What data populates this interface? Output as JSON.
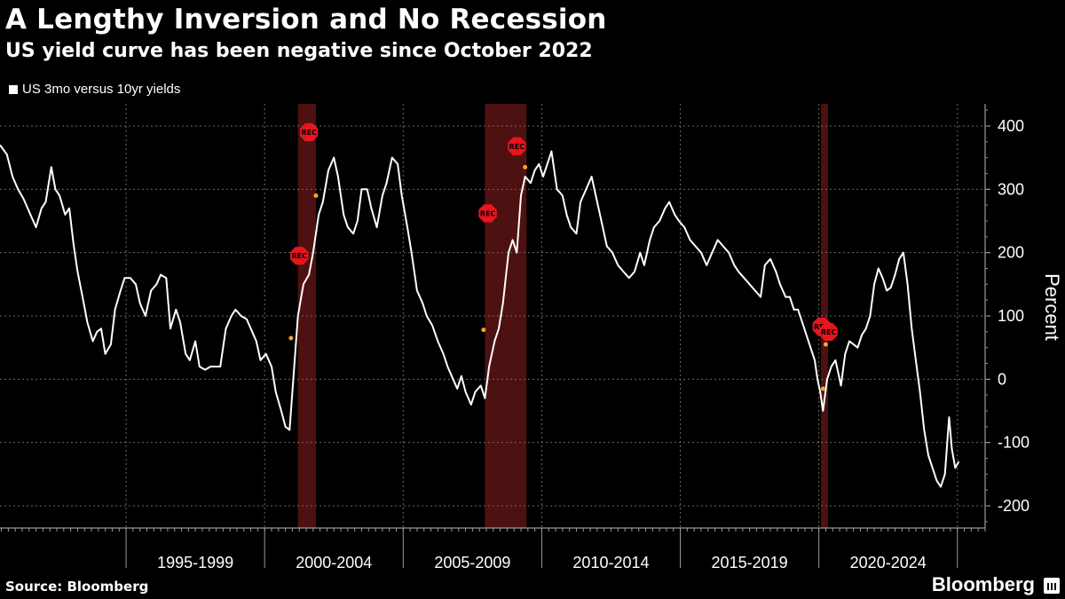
{
  "header": {
    "title": "A Lengthy Inversion and No Recession",
    "subtitle": "US yield curve has been negative since October 2022"
  },
  "footer": {
    "source": "Source: Bloomberg",
    "brand": "Bloomberg"
  },
  "colors": {
    "background": "#000000",
    "line": "#ffffff",
    "recession_band": "#5a1414",
    "rec_marker": "#e8141e",
    "marker_dot": "#f5a623",
    "grid": "#6a6a6a"
  },
  "chart_data": {
    "type": "line",
    "title": "A Lengthy Inversion and No Recession",
    "subtitle": "US yield curve has been negative since October 2022",
    "ylabel": "Percent",
    "xlabel": "",
    "ylim": [
      -235,
      435
    ],
    "xlim": [
      1990.45,
      2026.0
    ],
    "yticks": [
      -200,
      -100,
      0,
      100,
      200,
      300,
      400
    ],
    "ytick_labels": [
      "-200",
      "-100",
      "0",
      "100",
      "200",
      "300",
      "400"
    ],
    "xtick_labels": [
      "1995-1999",
      "2000-2004",
      "2005-2009",
      "2010-2014",
      "2015-2019",
      "2020-2024"
    ],
    "x_dividers": [
      1995,
      2000,
      2005,
      2010,
      2015,
      2020,
      2025
    ],
    "grid": true,
    "legend_position": "top-left",
    "series": [
      {
        "name": "US 3mo versus 10yr yields",
        "x": [
          1990.45,
          1990.7,
          1990.9,
          1991.1,
          1991.3,
          1991.55,
          1991.75,
          1991.95,
          1992.1,
          1992.3,
          1992.45,
          1992.6,
          1992.8,
          1992.95,
          1993.1,
          1993.25,
          1993.45,
          1993.6,
          1993.8,
          1993.95,
          1994.1,
          1994.25,
          1994.45,
          1994.6,
          1994.8,
          1994.95,
          1995.15,
          1995.35,
          1995.5,
          1995.7,
          1995.9,
          1996.1,
          1996.25,
          1996.45,
          1996.6,
          1996.8,
          1996.95,
          1997.15,
          1997.3,
          1997.5,
          1997.65,
          1997.85,
          1998.05,
          1998.25,
          1998.4,
          1998.6,
          1998.8,
          1998.95,
          1999.15,
          1999.35,
          1999.5,
          1999.7,
          1999.85,
          2000.05,
          2000.25,
          2000.4,
          2000.6,
          2000.75,
          2000.9,
          2001.05,
          2001.2,
          2001.4,
          2001.6,
          2001.75,
          2001.95,
          2002.1,
          2002.3,
          2002.5,
          2002.65,
          2002.85,
          2003.0,
          2003.2,
          2003.35,
          2003.5,
          2003.7,
          2003.85,
          2004.05,
          2004.25,
          2004.4,
          2004.6,
          2004.8,
          2004.95,
          2005.15,
          2005.3,
          2005.5,
          2005.7,
          2005.85,
          2006.05,
          2006.25,
          2006.45,
          2006.6,
          2006.8,
          2006.95,
          2007.1,
          2007.25,
          2007.45,
          2007.6,
          2007.8,
          2007.95,
          2008.1,
          2008.3,
          2008.45,
          2008.6,
          2008.8,
          2008.95,
          2009.1,
          2009.25,
          2009.4,
          2009.6,
          2009.75,
          2009.9,
          2010.05,
          2010.2,
          2010.35,
          2010.55,
          2010.75,
          2010.9,
          2011.05,
          2011.25,
          2011.4,
          2011.6,
          2011.8,
          2011.95,
          2012.15,
          2012.35,
          2012.55,
          2012.75,
          2012.95,
          2013.15,
          2013.35,
          2013.55,
          2013.7,
          2013.9,
          2014.05,
          2014.25,
          2014.45,
          2014.6,
          2014.8,
          2014.95,
          2015.15,
          2015.35,
          2015.55,
          2015.75,
          2015.95,
          2016.15,
          2016.35,
          2016.55,
          2016.75,
          2016.95,
          2017.1,
          2017.3,
          2017.5,
          2017.7,
          2017.9,
          2018.05,
          2018.25,
          2018.45,
          2018.6,
          2018.8,
          2018.95,
          2019.1,
          2019.25,
          2019.4,
          2019.55,
          2019.7,
          2019.85,
          2019.95,
          2020.05,
          2020.15,
          2020.3,
          2020.45,
          2020.6,
          2020.8,
          2020.95,
          2021.1,
          2021.25,
          2021.4,
          2021.55,
          2021.7,
          2021.85,
          2022.0,
          2022.15,
          2022.3,
          2022.45,
          2022.6,
          2022.75,
          2022.9,
          2023.05,
          2023.2,
          2023.35,
          2023.5,
          2023.65,
          2023.8,
          2023.95,
          2024.1,
          2024.25,
          2024.4,
          2024.55,
          2024.7,
          2024.8,
          2024.92,
          2025.05
        ],
        "values": [
          370,
          355,
          320,
          300,
          285,
          260,
          240,
          270,
          280,
          335,
          300,
          290,
          260,
          270,
          215,
          170,
          125,
          90,
          60,
          75,
          80,
          40,
          55,
          110,
          140,
          160,
          160,
          150,
          120,
          100,
          140,
          150,
          165,
          160,
          80,
          110,
          90,
          40,
          30,
          60,
          20,
          15,
          20,
          20,
          20,
          80,
          100,
          110,
          100,
          95,
          80,
          60,
          30,
          40,
          20,
          -20,
          -50,
          -75,
          -80,
          10,
          100,
          150,
          165,
          200,
          260,
          280,
          330,
          350,
          320,
          260,
          240,
          230,
          250,
          300,
          300,
          270,
          240,
          290,
          310,
          350,
          340,
          290,
          240,
          200,
          140,
          120,
          100,
          85,
          60,
          40,
          20,
          0,
          -15,
          5,
          -20,
          -40,
          -20,
          -10,
          -30,
          20,
          60,
          80,
          120,
          200,
          220,
          200,
          290,
          320,
          310,
          330,
          340,
          320,
          340,
          360,
          300,
          290,
          260,
          240,
          230,
          280,
          300,
          320,
          290,
          250,
          210,
          200,
          180,
          170,
          160,
          170,
          200,
          180,
          220,
          240,
          250,
          270,
          280,
          260,
          250,
          240,
          220,
          210,
          200,
          180,
          200,
          220,
          210,
          200,
          180,
          170,
          160,
          150,
          140,
          130,
          180,
          190,
          170,
          150,
          130,
          130,
          110,
          110,
          90,
          70,
          50,
          30,
          0,
          -20,
          -50,
          0,
          20,
          30,
          -10,
          40,
          60,
          55,
          50,
          70,
          80,
          100,
          150,
          175,
          160,
          140,
          145,
          165,
          190,
          200,
          150,
          80,
          30,
          -20,
          -80,
          -120,
          -140,
          -160,
          -170,
          -150,
          -60,
          -110,
          -140,
          -130
        ]
      }
    ],
    "recession_bands": [
      {
        "start": 2001.2,
        "end": 2001.85
      },
      {
        "start": 2007.95,
        "end": 2009.45
      },
      {
        "start": 2020.08,
        "end": 2020.33
      }
    ],
    "rec_markers": [
      {
        "label": "REC",
        "x": 2001.25,
        "y": 195
      },
      {
        "label": "REC",
        "x": 2001.6,
        "y": 390
      },
      {
        "label": "REC",
        "x": 2008.05,
        "y": 262
      },
      {
        "label": "REC",
        "x": 2009.1,
        "y": 368
      },
      {
        "label": "REC",
        "x": 2020.1,
        "y": 83
      },
      {
        "label": "REC",
        "x": 2020.35,
        "y": 75
      }
    ],
    "marker_points": [
      {
        "x": 2000.95,
        "y": 65
      },
      {
        "x": 2001.85,
        "y": 290
      },
      {
        "x": 2007.9,
        "y": 78
      },
      {
        "x": 2009.4,
        "y": 335
      },
      {
        "x": 2020.15,
        "y": -15
      },
      {
        "x": 2020.25,
        "y": 55
      }
    ]
  }
}
